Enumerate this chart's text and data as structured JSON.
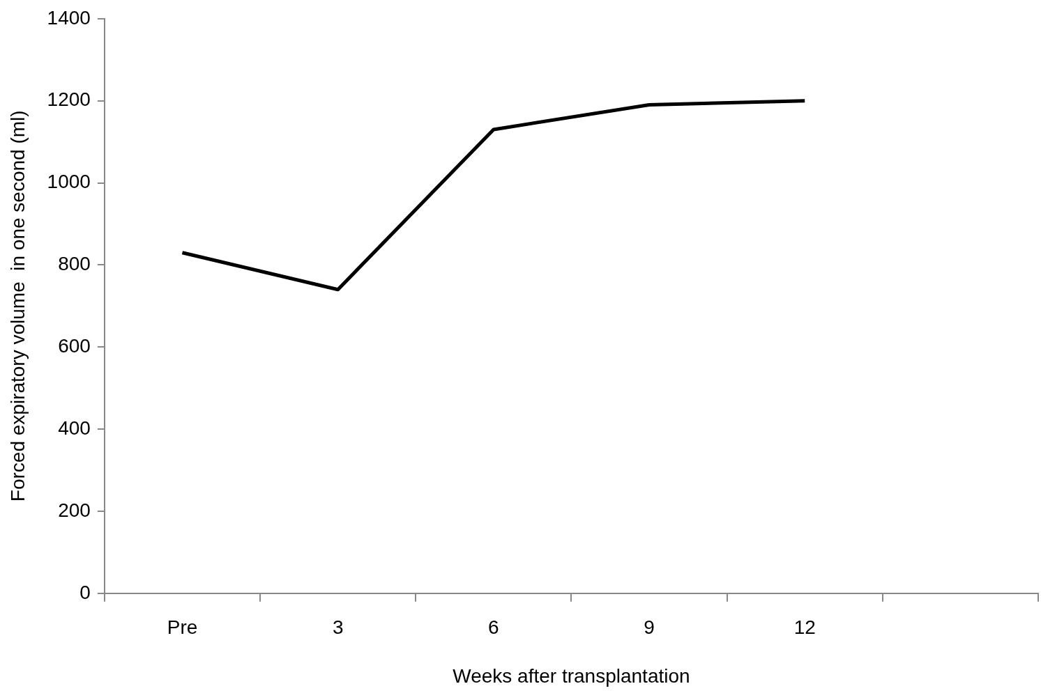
{
  "chart_data": {
    "type": "line",
    "xlabel": "Weeks after transplantation",
    "ylabel": "Forced expiratory volume  in one second (ml)",
    "categories": [
      "Pre",
      "3",
      "6",
      "9",
      "12",
      null
    ],
    "values": [
      830,
      740,
      1130,
      1190,
      1200,
      null
    ],
    "color": "#000000",
    "ylim": [
      0,
      1400
    ],
    "yticks": [
      0,
      200,
      400,
      600,
      800,
      1000,
      1200,
      1400
    ]
  }
}
